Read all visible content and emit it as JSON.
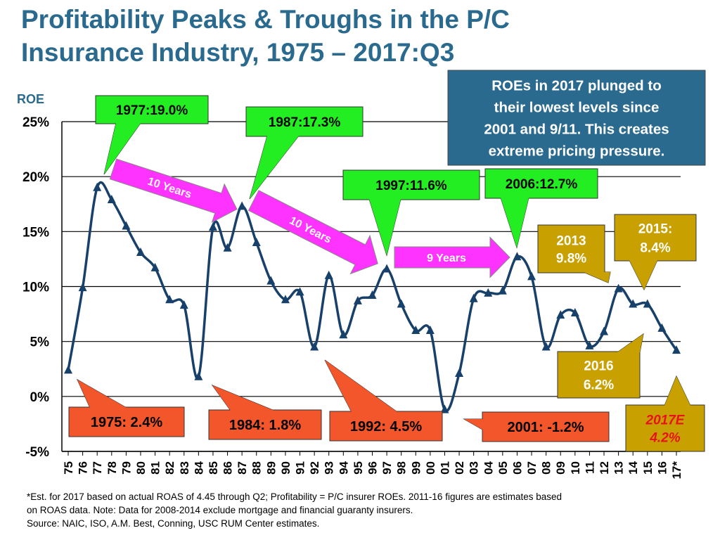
{
  "title": {
    "line1": "Profitability Peaks & Troughs in the P/C",
    "line2": "Insurance Industry, 1975 – 2017:Q3"
  },
  "chart_data": {
    "type": "line",
    "title": "Profitability Peaks & Troughs in the P/C Insurance Industry, 1975 – 2017:Q3",
    "ylabel": "ROE",
    "xlabel": "",
    "ylim": [
      -5,
      25
    ],
    "yticks": [
      25,
      20,
      15,
      10,
      5,
      0,
      -5
    ],
    "ytick_labels": [
      "25%",
      "20%",
      "15%",
      "10%",
      "5%",
      "0%",
      "-5%"
    ],
    "grid": true,
    "x_labels": [
      "75",
      "76",
      "77",
      "78",
      "79",
      "80",
      "81",
      "82",
      "83",
      "84",
      "85",
      "86",
      "87",
      "88",
      "89",
      "90",
      "91",
      "92",
      "93",
      "94",
      "95",
      "96",
      "97",
      "98",
      "99",
      "00",
      "01",
      "02",
      "03",
      "04",
      "05",
      "06",
      "07",
      "08",
      "09",
      "10",
      "11",
      "12",
      "13",
      "14",
      "15",
      "16",
      "17*"
    ],
    "series": [
      {
        "name": "P/C insurer ROE",
        "color": "#17406a",
        "values": [
          2.4,
          9.9,
          19.0,
          17.9,
          15.5,
          13.1,
          11.7,
          8.8,
          8.3,
          1.8,
          15.4,
          13.5,
          17.3,
          14.0,
          10.5,
          8.8,
          9.5,
          4.5,
          11.0,
          5.6,
          8.7,
          9.2,
          11.6,
          8.4,
          6.0,
          6.0,
          -1.2,
          2.1,
          8.9,
          9.4,
          9.6,
          12.7,
          10.9,
          4.5,
          7.4,
          7.6,
          4.6,
          5.9,
          9.8,
          8.4,
          8.4,
          6.2,
          4.2
        ]
      }
    ],
    "peak_callouts": [
      "1977:19.0%",
      "1987:17.3%",
      "1997:11.6%",
      "2006:12.7%"
    ],
    "trough_callouts": [
      "1975: 2.4%",
      "1984: 1.8%",
      "1992: 4.5%",
      "2001: -1.2%"
    ],
    "cycle_arrows": [
      "10 Years",
      "10 Years",
      "9 Years"
    ],
    "gold_callouts": [
      {
        "line1": "2013",
        "line2": "9.8%"
      },
      {
        "line1": "2015:",
        "line2": "8.4%"
      },
      {
        "line1": "2016",
        "line2": "6.2%"
      }
    ],
    "estimate_callout": {
      "line1": "2017E",
      "line2": "4.2%"
    },
    "note_box": {
      "lines": [
        "ROEs in 2017 plunged to",
        "their lowest levels since",
        "2001 and 9/11.  This creates",
        "extreme pricing pressure."
      ]
    }
  },
  "footnote": {
    "line1": "*Est. for 2017 based on actual ROAS of 4.45 through Q2; Profitability =  P/C insurer ROEs. 2011-16 figures are estimates based",
    "line2": "on ROAS data.  Note:  Data for 2008-2014 exclude mortgage and financial guaranty insurers.",
    "line3": "Source:  NAIC, ISO, A.M. Best, Conning, USC RUM Center estimates."
  },
  "colors": {
    "title": "#2a6a8f",
    "line": "#17406a",
    "peak_fill": "#22ee22",
    "trough_fill": "#f4562c",
    "arrow_fill": "#ff33ff",
    "gold_fill": "#c8a000",
    "note_fill": "#2a6a8f",
    "estimate_text": "#e8121f"
  }
}
